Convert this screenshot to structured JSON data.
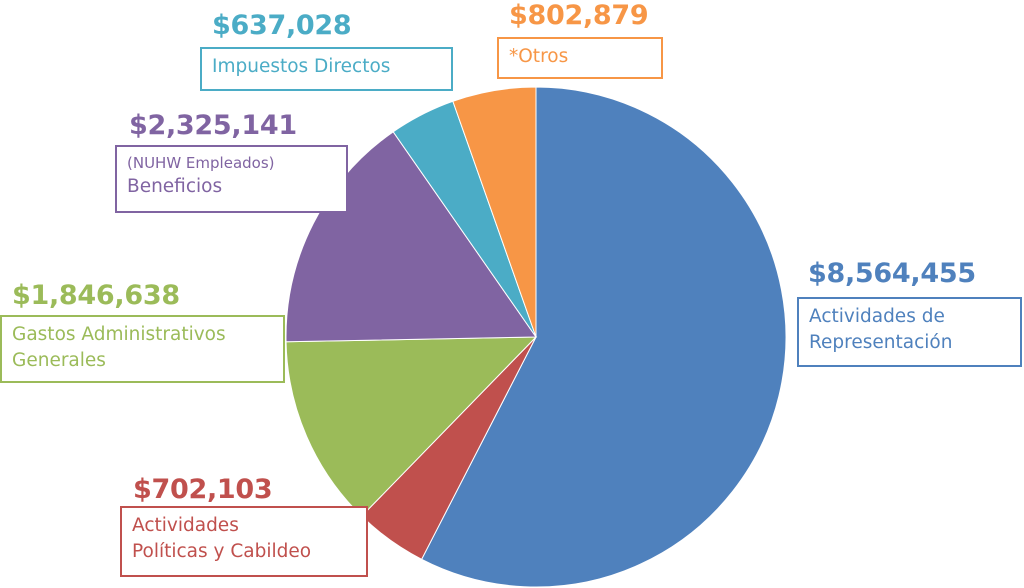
{
  "chart_data": {
    "type": "pie",
    "title": "",
    "currency": "$",
    "slices": [
      {
        "key": "representacion",
        "amount_label": "$8,564,455",
        "value": 8564455,
        "label_lines": [
          "Actividades de",
          "Representación"
        ],
        "color": "#4F81BD"
      },
      {
        "key": "politicas",
        "amount_label": "$702,103",
        "value": 702103,
        "label_lines": [
          "Actividades",
          "Políticas y Cabildeo"
        ],
        "color": "#C0504D"
      },
      {
        "key": "gastos",
        "amount_label": "$1,846,638",
        "value": 1846638,
        "label_lines": [
          "Gastos Administrativos",
          "Generales"
        ],
        "color": "#9BBB59"
      },
      {
        "key": "beneficios",
        "amount_label": "$2,325,141",
        "value": 2325141,
        "label_sub": "(NUHW Empleados)",
        "label_lines": [
          "Beneficios"
        ],
        "color": "#8064A2"
      },
      {
        "key": "impuestos",
        "amount_label": "$637,028",
        "value": 637028,
        "label_lines": [
          "Impuestos Directos"
        ],
        "color": "#4BACC6"
      },
      {
        "key": "otros",
        "amount_label": "$802,879",
        "value": 802879,
        "label_lines": [
          "*Otros"
        ],
        "color": "#F79646"
      }
    ]
  }
}
